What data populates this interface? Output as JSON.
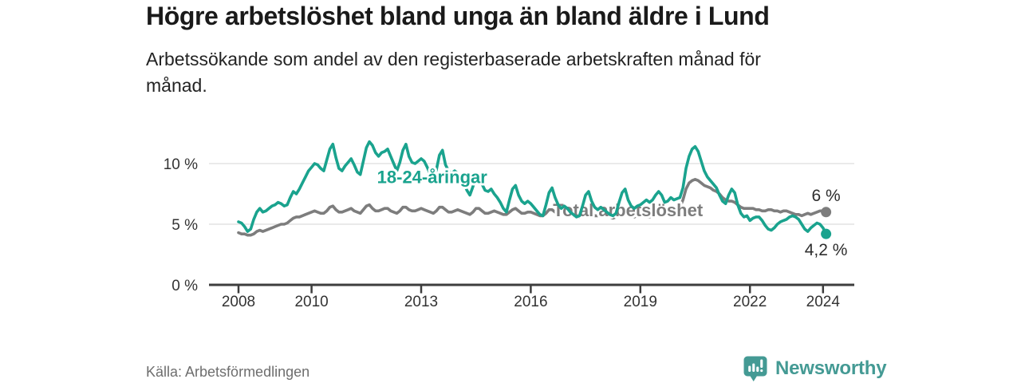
{
  "header": {
    "title": "Högre arbetslöshet bland unga än bland äldre i Lund",
    "subtitle": "Arbetssökande som andel av den registerbaserade arbetskraften månad för månad."
  },
  "footer": {
    "source": "Källa: Arbetsförmedlingen",
    "brand": "Newsworthy"
  },
  "colors": {
    "youth_line": "#1aa38e",
    "total_line": "#7d7d7d",
    "axis": "#3d3d3d",
    "grid": "#dedede",
    "tick_text": "#333333",
    "end_label_text": "#2d2d2d",
    "title_text": "#1a1a1a",
    "source_text": "#6e6e6e",
    "brand_teal": "#449a94"
  },
  "chart_data": {
    "type": "line",
    "title": "Högre arbetslöshet bland unga än bland äldre i Lund",
    "unit": "%",
    "frequency": "monthly",
    "start_year": 2008,
    "start_month": 1,
    "grid": "horizontal",
    "legend_position": "inline-labels",
    "ylim": [
      0,
      12.5
    ],
    "x_tick_years": [
      2008,
      2010,
      2013,
      2016,
      2019,
      2022,
      2024
    ],
    "y_ticks": [
      {
        "value": 0,
        "label": "0 %"
      },
      {
        "value": 5,
        "label": "5 %"
      },
      {
        "value": 10,
        "label": "10 %"
      }
    ],
    "series": [
      {
        "name": "18-24-åringar",
        "color": "#1aa38e",
        "end_label": "4,2 %",
        "end_label_position": "below",
        "label_anchor": {
          "x": 2013.3,
          "y": 8.9
        },
        "values": [
          5.2,
          5.1,
          4.8,
          4.4,
          4.6,
          5.4,
          6.0,
          6.3,
          6.0,
          6.1,
          6.3,
          6.5,
          6.6,
          6.8,
          6.7,
          6.5,
          6.6,
          7.2,
          7.7,
          7.5,
          7.9,
          8.4,
          8.9,
          9.4,
          9.7,
          10.0,
          9.9,
          9.6,
          9.4,
          10.3,
          11.2,
          11.6,
          10.5,
          9.6,
          9.4,
          9.8,
          10.1,
          10.4,
          9.9,
          9.3,
          9.1,
          10.2,
          11.3,
          11.8,
          11.5,
          10.9,
          10.6,
          10.9,
          11.0,
          11.2,
          10.6,
          10.0,
          9.4,
          10.1,
          11.1,
          11.6,
          10.6,
          10.1,
          10.0,
          10.2,
          10.4,
          10.2,
          9.7,
          9.1,
          8.6,
          9.5,
          10.7,
          11.1,
          9.9,
          9.4,
          9.2,
          9.4,
          9.2,
          8.9,
          8.4,
          7.8,
          7.4,
          8.1,
          8.9,
          9.1,
          8.3,
          7.8,
          7.7,
          7.9,
          7.5,
          7.2,
          6.8,
          6.3,
          6.0,
          7.0,
          7.9,
          8.2,
          7.4,
          6.9,
          6.7,
          6.9,
          6.7,
          6.4,
          6.1,
          5.8,
          5.7,
          6.6,
          7.6,
          8.0,
          7.2,
          6.6,
          6.3,
          6.5,
          6.3,
          6.0,
          5.8,
          5.6,
          5.7,
          6.5,
          7.4,
          7.7,
          6.9,
          6.4,
          6.2,
          6.4,
          6.2,
          6.0,
          5.8,
          5.7,
          5.9,
          6.8,
          7.6,
          7.9,
          7.0,
          6.5,
          6.3,
          6.5,
          6.6,
          6.8,
          7.0,
          6.8,
          7.0,
          7.4,
          7.7,
          7.4,
          6.8,
          6.9,
          7.2,
          7.0,
          7.1,
          7.2,
          8.0,
          9.6,
          10.6,
          11.2,
          11.4,
          11.0,
          10.2,
          9.4,
          8.9,
          8.6,
          8.3,
          8.0,
          7.4,
          6.9,
          6.7,
          7.4,
          7.9,
          7.6,
          6.6,
          5.9,
          5.6,
          5.7,
          5.3,
          5.5,
          5.6,
          5.6,
          5.3,
          4.9,
          4.6,
          4.5,
          4.7,
          5.0,
          5.2,
          5.3,
          5.4,
          5.6,
          5.7,
          5.6,
          5.4,
          5.0,
          4.6,
          4.4,
          4.7,
          4.9,
          5.1,
          5.0,
          4.7,
          4.2
        ]
      },
      {
        "name": "Total arbetslöshet",
        "color": "#7d7d7d",
        "end_label": "6 %",
        "end_label_position": "above",
        "label_anchor": {
          "x": 2018.66,
          "y": 6.2
        },
        "values": [
          4.3,
          4.2,
          4.2,
          4.1,
          4.1,
          4.2,
          4.4,
          4.5,
          4.4,
          4.5,
          4.6,
          4.7,
          4.8,
          4.9,
          5.0,
          5.0,
          5.1,
          5.3,
          5.5,
          5.6,
          5.6,
          5.7,
          5.8,
          5.9,
          6.0,
          6.1,
          6.0,
          5.9,
          5.9,
          6.1,
          6.4,
          6.5,
          6.2,
          6.0,
          6.0,
          6.1,
          6.2,
          6.3,
          6.1,
          6.0,
          5.9,
          6.2,
          6.5,
          6.6,
          6.3,
          6.1,
          6.1,
          6.2,
          6.3,
          6.3,
          6.1,
          6.0,
          5.9,
          6.1,
          6.4,
          6.4,
          6.2,
          6.1,
          6.1,
          6.2,
          6.3,
          6.2,
          6.1,
          6.0,
          5.9,
          6.1,
          6.4,
          6.4,
          6.2,
          6.0,
          6.0,
          6.1,
          6.2,
          6.1,
          6.0,
          5.9,
          5.8,
          6.0,
          6.3,
          6.3,
          6.1,
          5.9,
          5.9,
          6.0,
          6.1,
          6.0,
          5.9,
          5.8,
          5.8,
          6.0,
          6.2,
          6.3,
          6.1,
          5.9,
          5.9,
          6.0,
          6.0,
          5.9,
          5.8,
          5.7,
          5.7,
          5.9,
          6.2,
          6.2,
          6.0,
          5.8,
          5.8,
          5.9,
          5.9,
          5.8,
          5.7,
          5.6,
          5.6,
          5.8,
          6.1,
          6.1,
          5.9,
          5.7,
          5.7,
          5.8,
          5.8,
          5.7,
          5.6,
          5.5,
          5.6,
          5.8,
          6.0,
          6.1,
          5.9,
          5.7,
          5.6,
          5.7,
          5.7,
          5.7,
          5.6,
          5.6,
          5.7,
          5.9,
          6.1,
          6.1,
          5.9,
          5.9,
          6.0,
          6.1,
          6.3,
          6.4,
          7.0,
          7.9,
          8.4,
          8.6,
          8.7,
          8.6,
          8.4,
          8.2,
          8.1,
          8.0,
          7.8,
          7.7,
          7.5,
          7.2,
          7.0,
          6.9,
          6.9,
          6.8,
          6.6,
          6.4,
          6.3,
          6.3,
          6.3,
          6.3,
          6.2,
          6.2,
          6.1,
          6.1,
          6.2,
          6.2,
          6.1,
          6.1,
          6.0,
          6.1,
          6.1,
          6.0,
          5.9,
          5.8,
          5.8,
          5.7,
          5.8,
          5.9,
          5.8,
          5.9,
          6.0,
          6.1,
          6.1,
          6.0
        ]
      }
    ]
  }
}
